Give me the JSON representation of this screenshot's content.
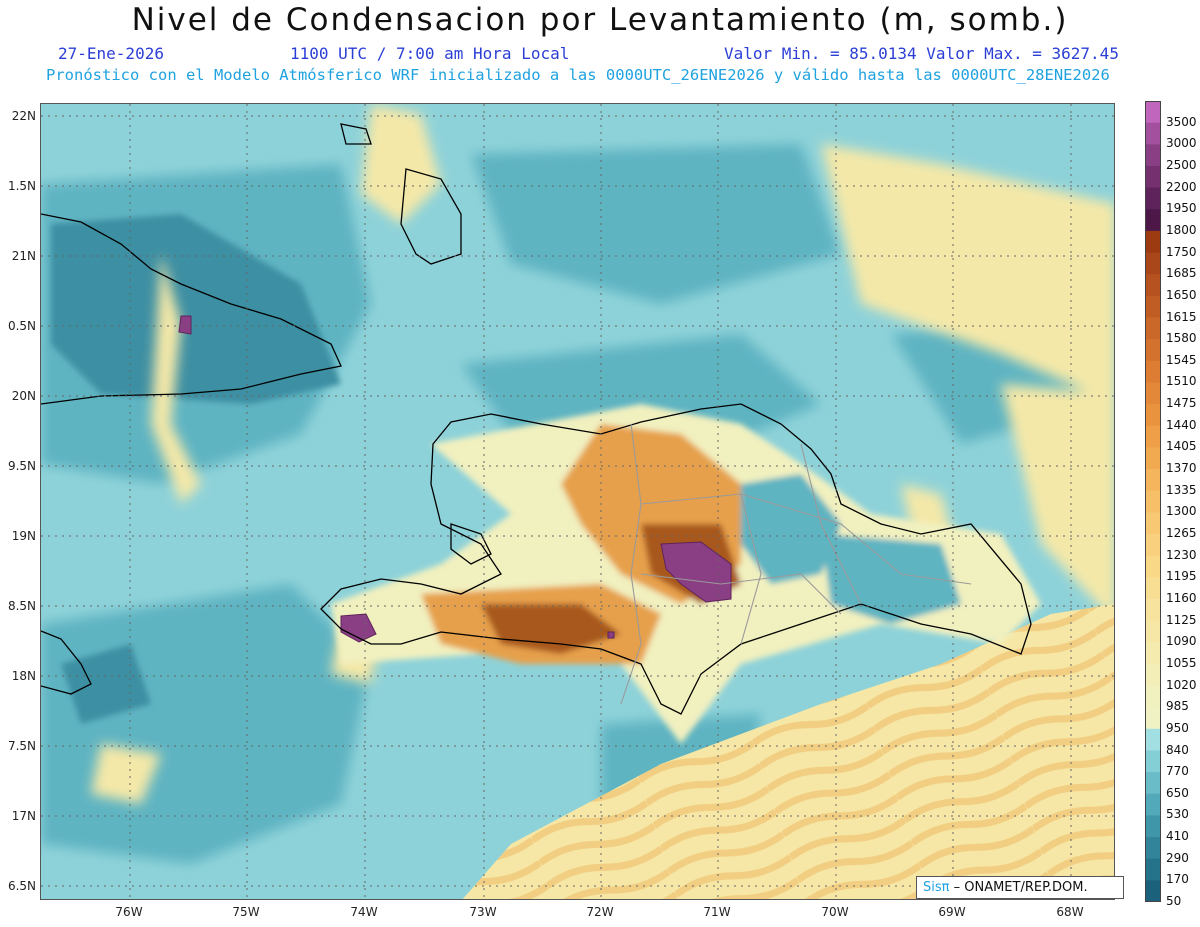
{
  "title": "Nivel de Condensacion por Levantamiento (m, somb.)",
  "header": {
    "date": "27-Ene-2026",
    "time": "1100 UTC / 7:00 am Hora Local",
    "minmax": "Valor Min. = 85.0134  Valor Max. = 3627.45",
    "forecast": "Pronóstico con el Modelo Atmósferico WRF inicializado a las 0000UTC_26ENE2026 y válido hasta las  0000UTC_28ENE2026"
  },
  "axes": {
    "lat_labels": [
      "22N",
      "1.5N",
      "21N",
      "0.5N",
      "20N",
      "9.5N",
      "19N",
      "8.5N",
      "18N",
      "7.5N",
      "17N",
      "6.5N"
    ],
    "lon_labels": [
      "76W",
      "75W",
      "74W",
      "73W",
      "72W",
      "71W",
      "70W",
      "69W",
      "68W"
    ]
  },
  "colorbar": {
    "levels": [
      "3500",
      "3000",
      "2500",
      "2200",
      "1950",
      "1800",
      "1750",
      "1685",
      "1650",
      "1615",
      "1580",
      "1545",
      "1510",
      "1475",
      "1440",
      "1405",
      "1370",
      "1335",
      "1300",
      "1265",
      "1230",
      "1195",
      "1160",
      "1125",
      "1090",
      "1055",
      "1020",
      "985",
      "950",
      "840",
      "770",
      "650",
      "530",
      "410",
      "290",
      "170",
      "50"
    ],
    "colors": [
      "#c066bc",
      "#a3509e",
      "#8a3f85",
      "#74306f",
      "#5e235a",
      "#4d1847",
      "#9c3a12",
      "#a9461a",
      "#b5521f",
      "#c05d24",
      "#ca6829",
      "#d3722e",
      "#dc7d33",
      "#e38838",
      "#e9933f",
      "#ee9f47",
      "#f2aa51",
      "#f5b55c",
      "#f7bf67",
      "#f8c872",
      "#f9d07d",
      "#f9d888",
      "#f8de93",
      "#f7e39d",
      "#f6e7a6",
      "#f5ebaf",
      "#f3eeb8",
      "#f1f0bf",
      "#f0f2c4",
      "#a2dfe3",
      "#84cfd6",
      "#69bcc8",
      "#52a9b9",
      "#4096a9",
      "#31849a",
      "#25728b",
      "#1b617c"
    ]
  },
  "credit": {
    "brand": "Sisπ",
    "org": " – ONAMET/REP.DOM."
  },
  "colors": {
    "ocean_light": "#8ed2d9",
    "ocean_mid": "#5eb4c2",
    "ocean_dark": "#3e8fa3",
    "land_yellow": "#f4e8a8",
    "land_orange": "#e6a04c",
    "land_brown": "#a8581f",
    "land_purple": "#8a3f85"
  }
}
